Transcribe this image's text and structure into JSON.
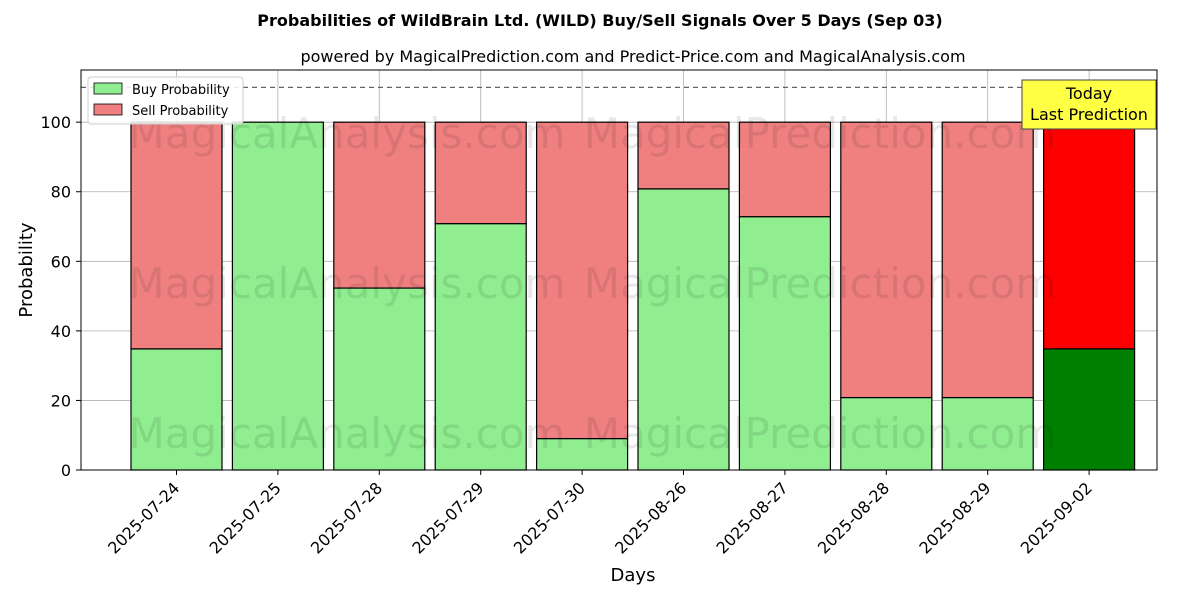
{
  "chart_data": {
    "type": "bar",
    "stacked": true,
    "title": "Probabilities of WildBrain Ltd. (WILD) Buy/Sell Signals Over 5 Days (Sep 03)",
    "subtitle": "powered by MagicalPrediction.com and Predict-Price.com and MagicalAnalysis.com",
    "xlabel": "Days",
    "ylabel": "Probability",
    "ylim": [
      0,
      115
    ],
    "yticks": [
      0,
      20,
      40,
      60,
      80,
      100
    ],
    "reference_line": 110,
    "grid": true,
    "legend_position": "top-left",
    "categories": [
      "2025-07-24",
      "2025-07-25",
      "2025-07-28",
      "2025-07-29",
      "2025-07-30",
      "2025-08-26",
      "2025-08-27",
      "2025-08-28",
      "2025-08-29",
      "2025-09-02"
    ],
    "series": [
      {
        "name": "Buy Probability",
        "color": "#90ee90",
        "highlight_color": "#008000",
        "values": [
          34.8,
          100,
          52.3,
          70.8,
          9.0,
          80.8,
          72.8,
          20.8,
          20.8,
          34.8
        ]
      },
      {
        "name": "Sell Probability",
        "color": "#f08080",
        "highlight_color": "#ff0000",
        "values": [
          65.2,
          0,
          47.7,
          29.2,
          91.0,
          19.2,
          27.2,
          79.2,
          79.2,
          65.2
        ]
      }
    ],
    "annotation": {
      "line1": "Today",
      "line2": "Last Prediction",
      "color": "#ffff44"
    },
    "watermarks": [
      "MagicalAnalysis.com",
      "MagicalPrediction.com"
    ]
  }
}
